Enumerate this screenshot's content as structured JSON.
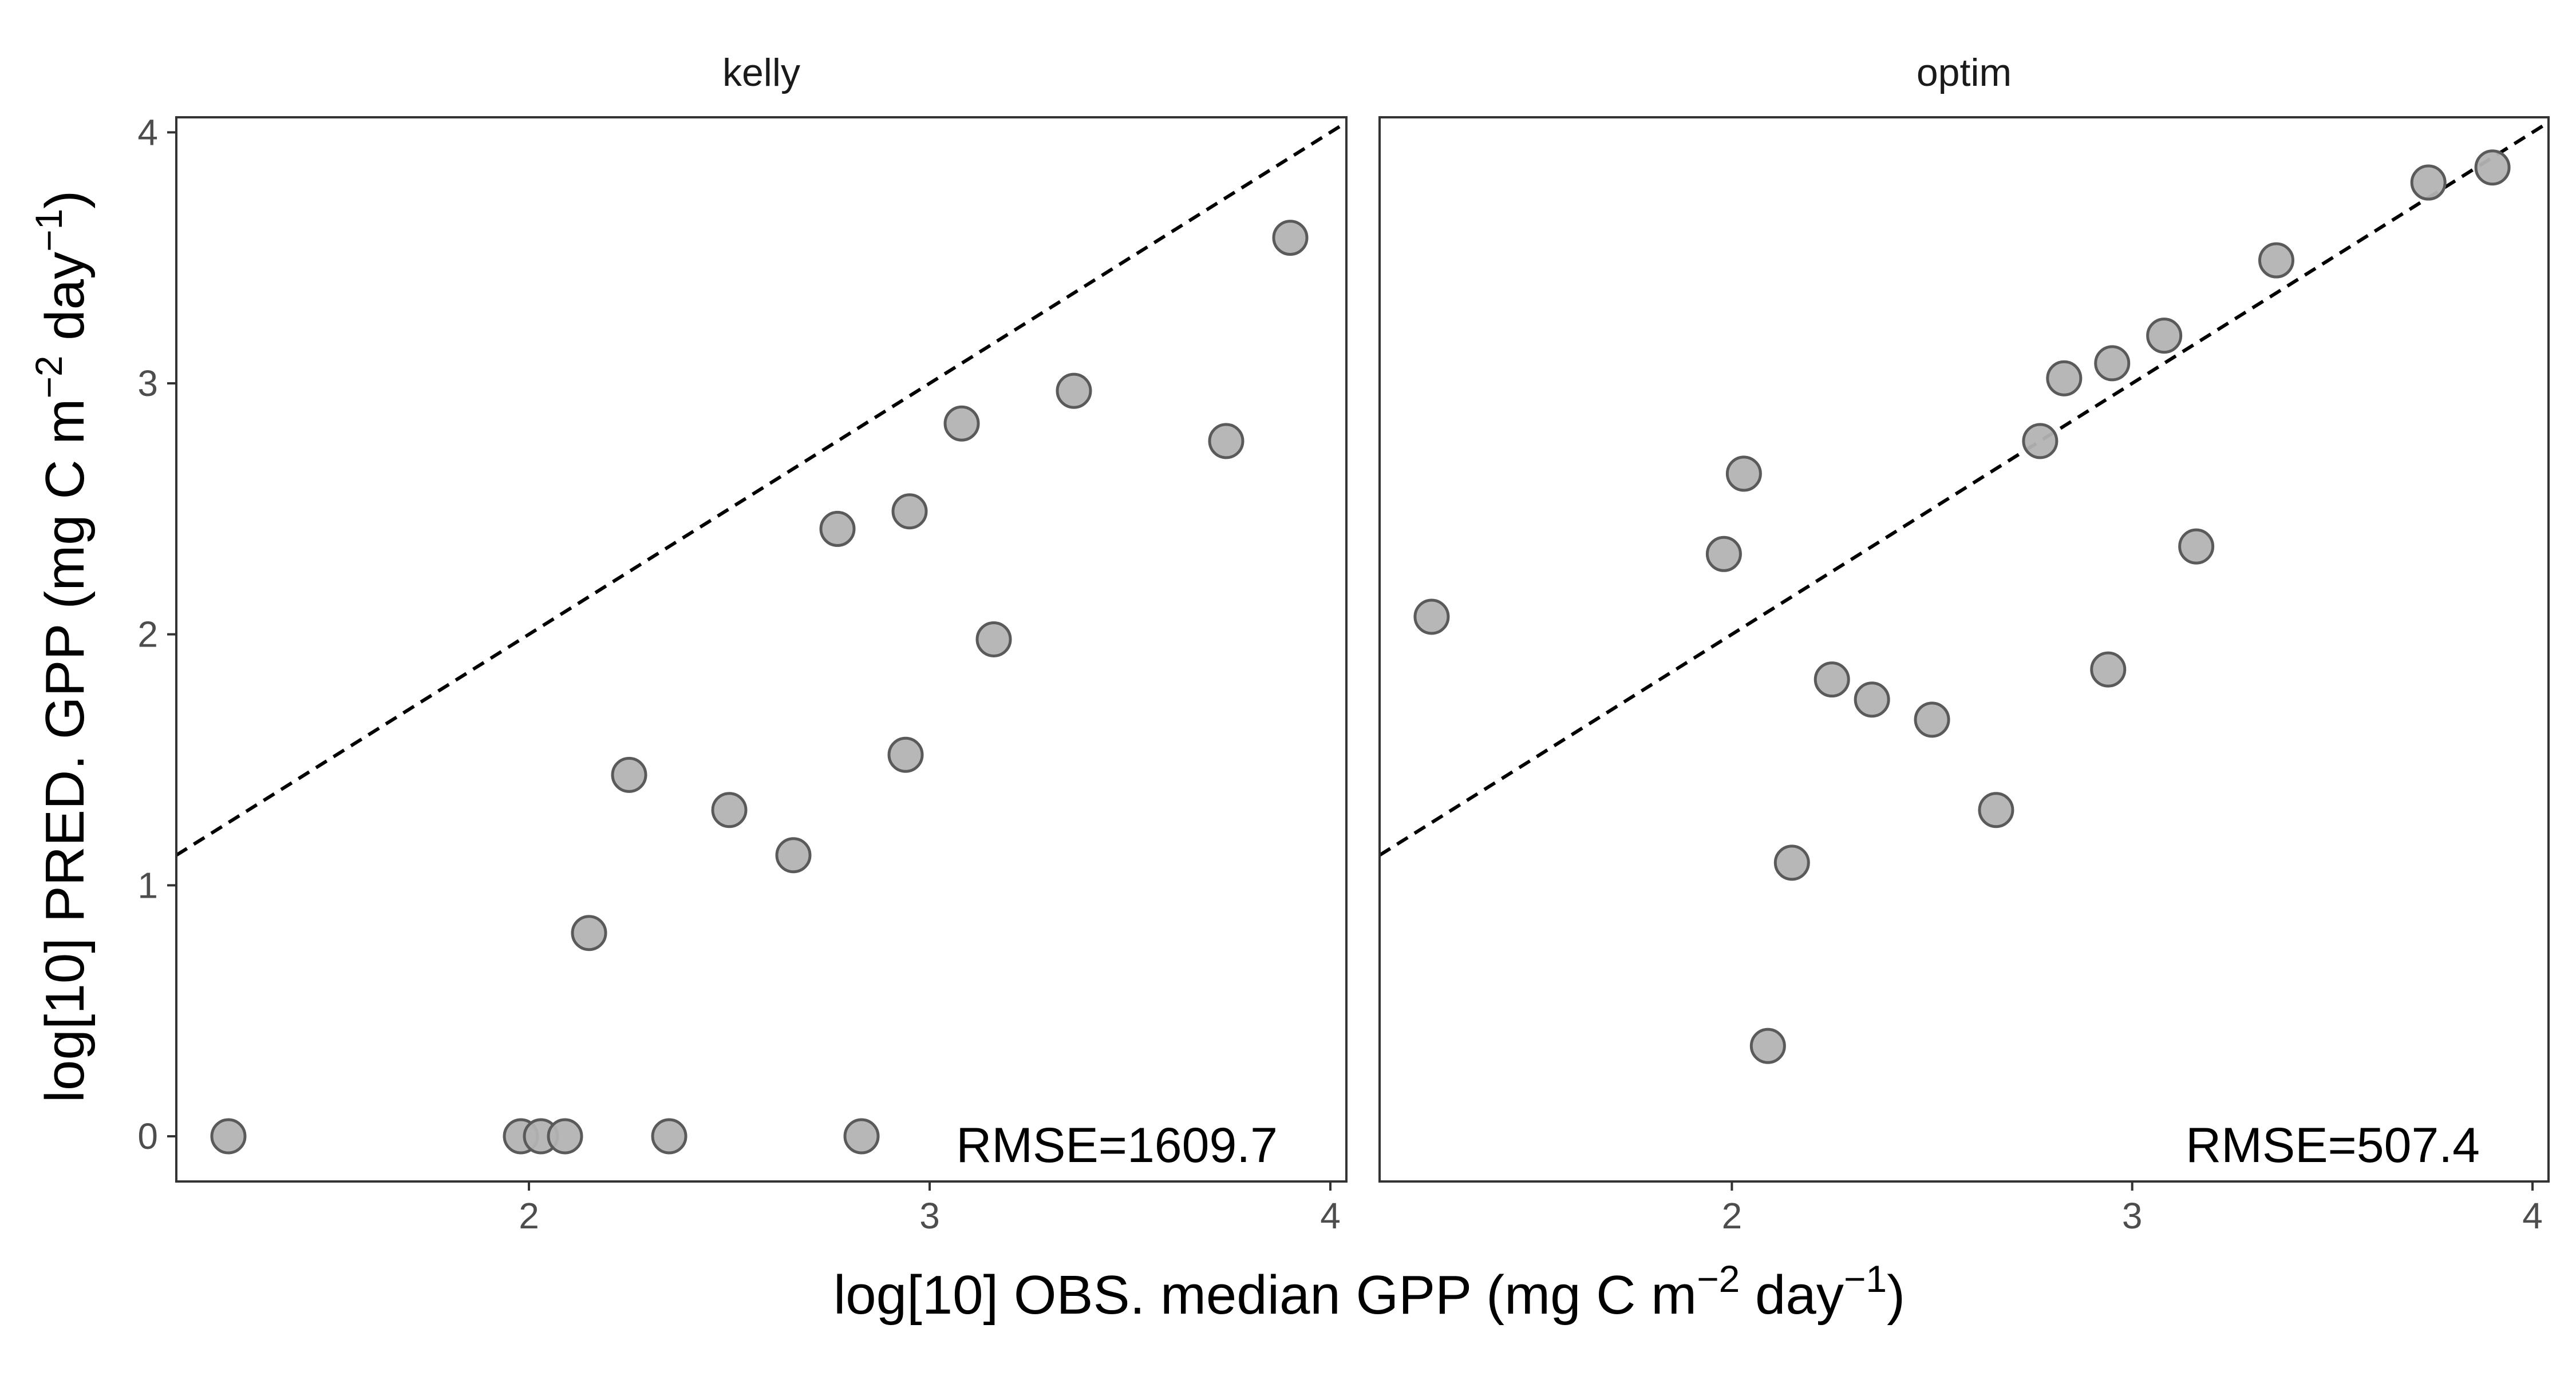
{
  "chart_data": {
    "type": "scatter",
    "xlabel": {
      "main": "log[10] OBS. median GPP (mg C m",
      "sup1": "−2",
      "mid": " day",
      "sup2": "−1",
      "end": ")"
    },
    "ylabel": {
      "main": "log[10] PRED. GPP (mg C m",
      "sup1": "−2",
      "mid": " day",
      "sup2": "−1",
      "end": ")"
    },
    "xlim": [
      1.12,
      4.04
    ],
    "ylim": [
      -0.18,
      4.06
    ],
    "x_ticks": [
      2,
      3,
      4
    ],
    "x_tick_labels": [
      "2",
      "3",
      "4"
    ],
    "y_ticks": [
      0,
      1,
      2,
      3,
      4
    ],
    "y_tick_labels": [
      "0",
      "1",
      "2",
      "3",
      "4"
    ],
    "reference_line": "y = x (dashed)",
    "grid": false,
    "point_color": "#b3b3b3",
    "point_stroke": "#5a5a5a",
    "panels": [
      {
        "title": "kelly",
        "annotation": "RMSE=1609.7",
        "points": [
          {
            "x": 1.25,
            "y": 0.0
          },
          {
            "x": 1.98,
            "y": 0.0
          },
          {
            "x": 2.03,
            "y": 0.0
          },
          {
            "x": 2.09,
            "y": 0.0
          },
          {
            "x": 2.15,
            "y": 0.81
          },
          {
            "x": 2.25,
            "y": 1.44
          },
          {
            "x": 2.35,
            "y": 0.0
          },
          {
            "x": 2.5,
            "y": 1.3
          },
          {
            "x": 2.66,
            "y": 1.12
          },
          {
            "x": 2.77,
            "y": 2.42
          },
          {
            "x": 2.83,
            "y": 0.0
          },
          {
            "x": 2.94,
            "y": 1.52
          },
          {
            "x": 2.95,
            "y": 2.49
          },
          {
            "x": 3.08,
            "y": 2.84
          },
          {
            "x": 3.16,
            "y": 1.98
          },
          {
            "x": 3.36,
            "y": 2.97
          },
          {
            "x": 3.74,
            "y": 2.77
          },
          {
            "x": 3.9,
            "y": 3.58
          }
        ]
      },
      {
        "title": "optim",
        "annotation": "RMSE=507.4",
        "points": [
          {
            "x": 1.25,
            "y": 2.07
          },
          {
            "x": 1.98,
            "y": 2.32
          },
          {
            "x": 2.03,
            "y": 2.64
          },
          {
            "x": 2.09,
            "y": 0.36
          },
          {
            "x": 2.15,
            "y": 1.09
          },
          {
            "x": 2.25,
            "y": 1.82
          },
          {
            "x": 2.35,
            "y": 1.74
          },
          {
            "x": 2.5,
            "y": 1.66
          },
          {
            "x": 2.66,
            "y": 1.3
          },
          {
            "x": 2.77,
            "y": 2.77
          },
          {
            "x": 2.83,
            "y": 3.02
          },
          {
            "x": 2.94,
            "y": 1.86
          },
          {
            "x": 2.95,
            "y": 3.08
          },
          {
            "x": 3.08,
            "y": 3.19
          },
          {
            "x": 3.16,
            "y": 2.35
          },
          {
            "x": 3.36,
            "y": 3.49
          },
          {
            "x": 3.74,
            "y": 3.8
          },
          {
            "x": 3.9,
            "y": 3.86
          }
        ]
      }
    ]
  }
}
